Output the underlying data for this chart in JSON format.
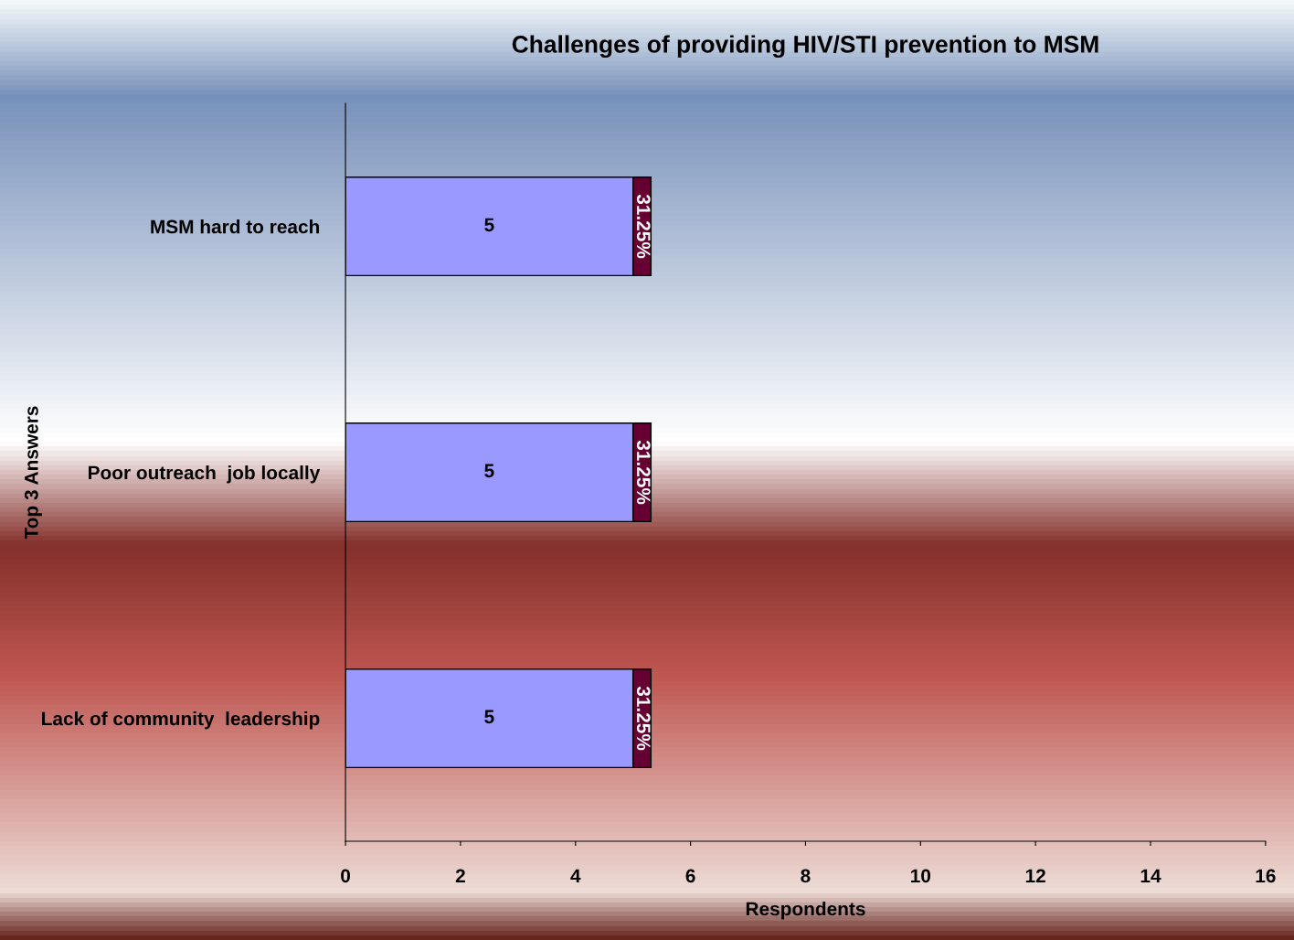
{
  "chart_data": {
    "type": "bar",
    "orientation": "horizontal",
    "stacked": true,
    "title": "Challenges of providing HIV/STI prevention to MSM",
    "xlabel": "Respondents",
    "ylabel": "Top 3 Answers",
    "categories": [
      "MSM hard to reach",
      "Poor outreach  job locally",
      "Lack of community  leadership"
    ],
    "series": [
      {
        "color": "#9999ff",
        "values": [
          5,
          5,
          5
        ],
        "value_labels": [
          "5",
          "5",
          "5"
        ]
      },
      {
        "color": "#660033",
        "values": [
          0.3125,
          0.3125,
          0.3125
        ],
        "value_labels": [
          "31.25%",
          "31.25%",
          "31.25%"
        ]
      }
    ],
    "xlim": [
      0,
      16
    ],
    "xticks": [
      0,
      2,
      4,
      6,
      8,
      10,
      12,
      14,
      16
    ],
    "grid": false,
    "legend": false
  }
}
